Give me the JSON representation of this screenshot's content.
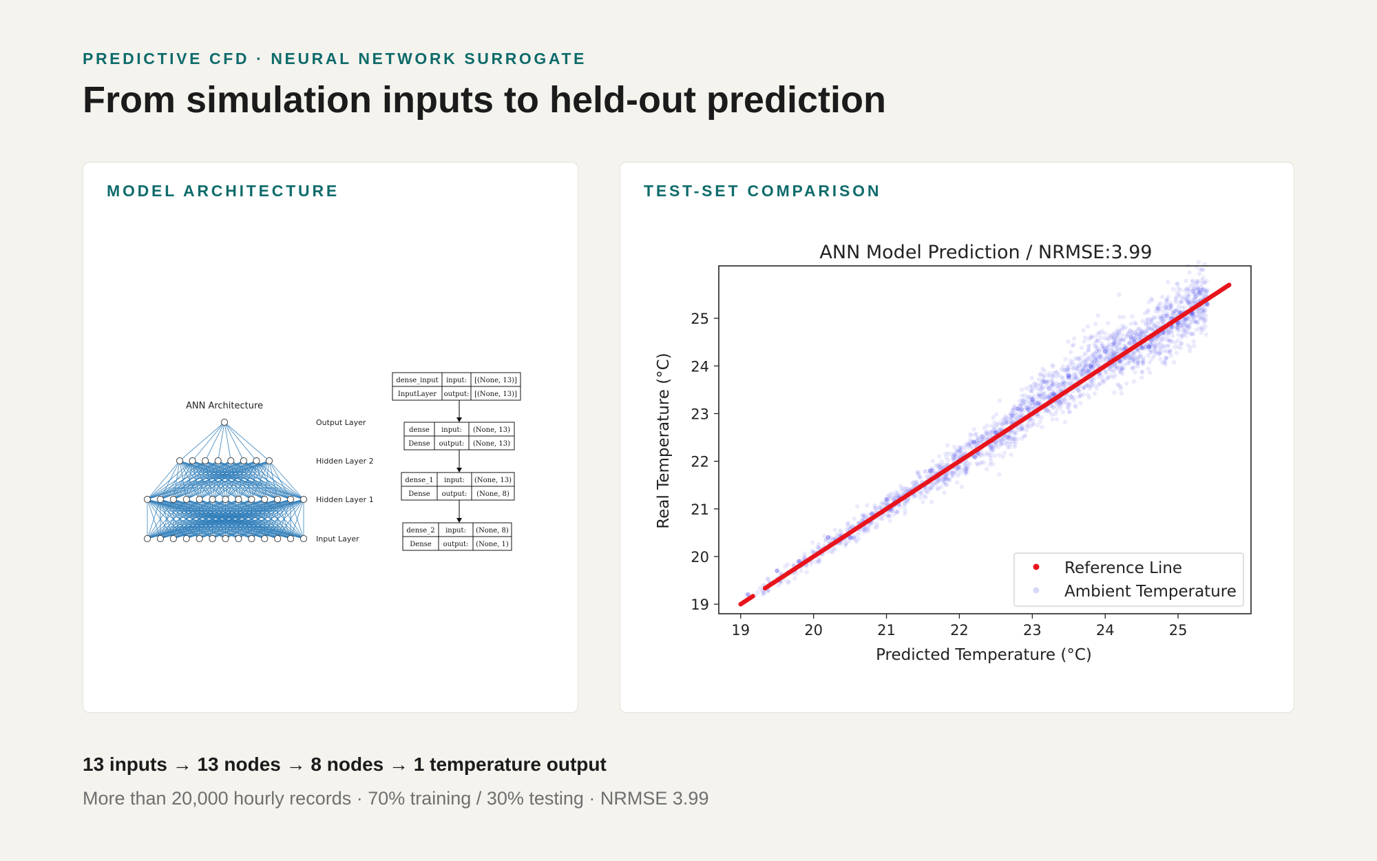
{
  "header": {
    "eyebrow": "PREDICTIVE CFD · NEURAL NETWORK SURROGATE",
    "title": "From simulation inputs to held-out prediction"
  },
  "architecture_card": {
    "label": "MODEL ARCHITECTURE",
    "diagram_title": "ANN Architecture",
    "layers": [
      {
        "label": "Output Layer",
        "nodes": 1
      },
      {
        "label": "Hidden Layer 2",
        "nodes": 8
      },
      {
        "label": "Hidden Layer 1",
        "nodes": 13
      },
      {
        "label": "Input Layer",
        "nodes": 13
      }
    ],
    "keras_summary": [
      {
        "name": "dense_input",
        "type": "InputLayer",
        "input": "[(None, 13)]",
        "output": "[(None, 13)]"
      },
      {
        "name": "dense",
        "type": "Dense",
        "input": "(None, 13)",
        "output": "(None, 13)"
      },
      {
        "name": "dense_1",
        "type": "Dense",
        "input": "(None, 13)",
        "output": "(None, 8)"
      },
      {
        "name": "dense_2",
        "type": "Dense",
        "input": "(None, 8)",
        "output": "(None, 1)"
      }
    ],
    "input_label": "input:",
    "output_label": "output:"
  },
  "comparison_card": {
    "label": "TEST-SET COMPARISON"
  },
  "chart_data": {
    "type": "scatter",
    "title": "ANN Model Prediction / NRMSE:3.99",
    "xlabel": "Predicted Temperature (°C)",
    "ylabel": "Real Temperature (°C)",
    "xlim": [
      18.7,
      26.0
    ],
    "ylim": [
      18.8,
      26.1
    ],
    "xticks": [
      19,
      20,
      21,
      22,
      23,
      24,
      25
    ],
    "yticks": [
      19,
      20,
      21,
      22,
      23,
      24,
      25
    ],
    "grid": false,
    "legend_position": "bottom-right",
    "series": [
      {
        "name": "Reference Line",
        "color": "#e8141c",
        "kind": "line",
        "x": [
          19.0,
          25.7
        ],
        "y": [
          19.0,
          25.7
        ]
      },
      {
        "name": "Ambient Temperature",
        "color": "#1f1fe6",
        "kind": "scatter",
        "x": [
          19.1,
          19.5,
          19.8,
          20.2,
          20.5,
          20.8,
          21.0,
          21.3,
          21.6,
          21.9,
          22.2,
          22.5,
          22.8,
          23.0,
          23.3,
          23.5,
          23.8,
          24.0,
          24.2,
          24.4,
          24.6,
          24.8,
          25.0,
          25.2,
          25.4
        ],
        "y": [
          19.2,
          19.7,
          19.9,
          20.4,
          20.4,
          20.9,
          21.2,
          21.3,
          21.8,
          21.9,
          22.4,
          22.6,
          23.1,
          23.3,
          23.4,
          23.8,
          24.0,
          24.3,
          24.1,
          24.5,
          24.4,
          24.7,
          24.9,
          25.1,
          25.3
        ]
      }
    ]
  },
  "footer": {
    "summary": "13 inputs → 13 nodes → 8 nodes → 1 temperature output",
    "meta": "More than 20,000 hourly records · 70% training / 30% testing · NRMSE 3.99"
  }
}
